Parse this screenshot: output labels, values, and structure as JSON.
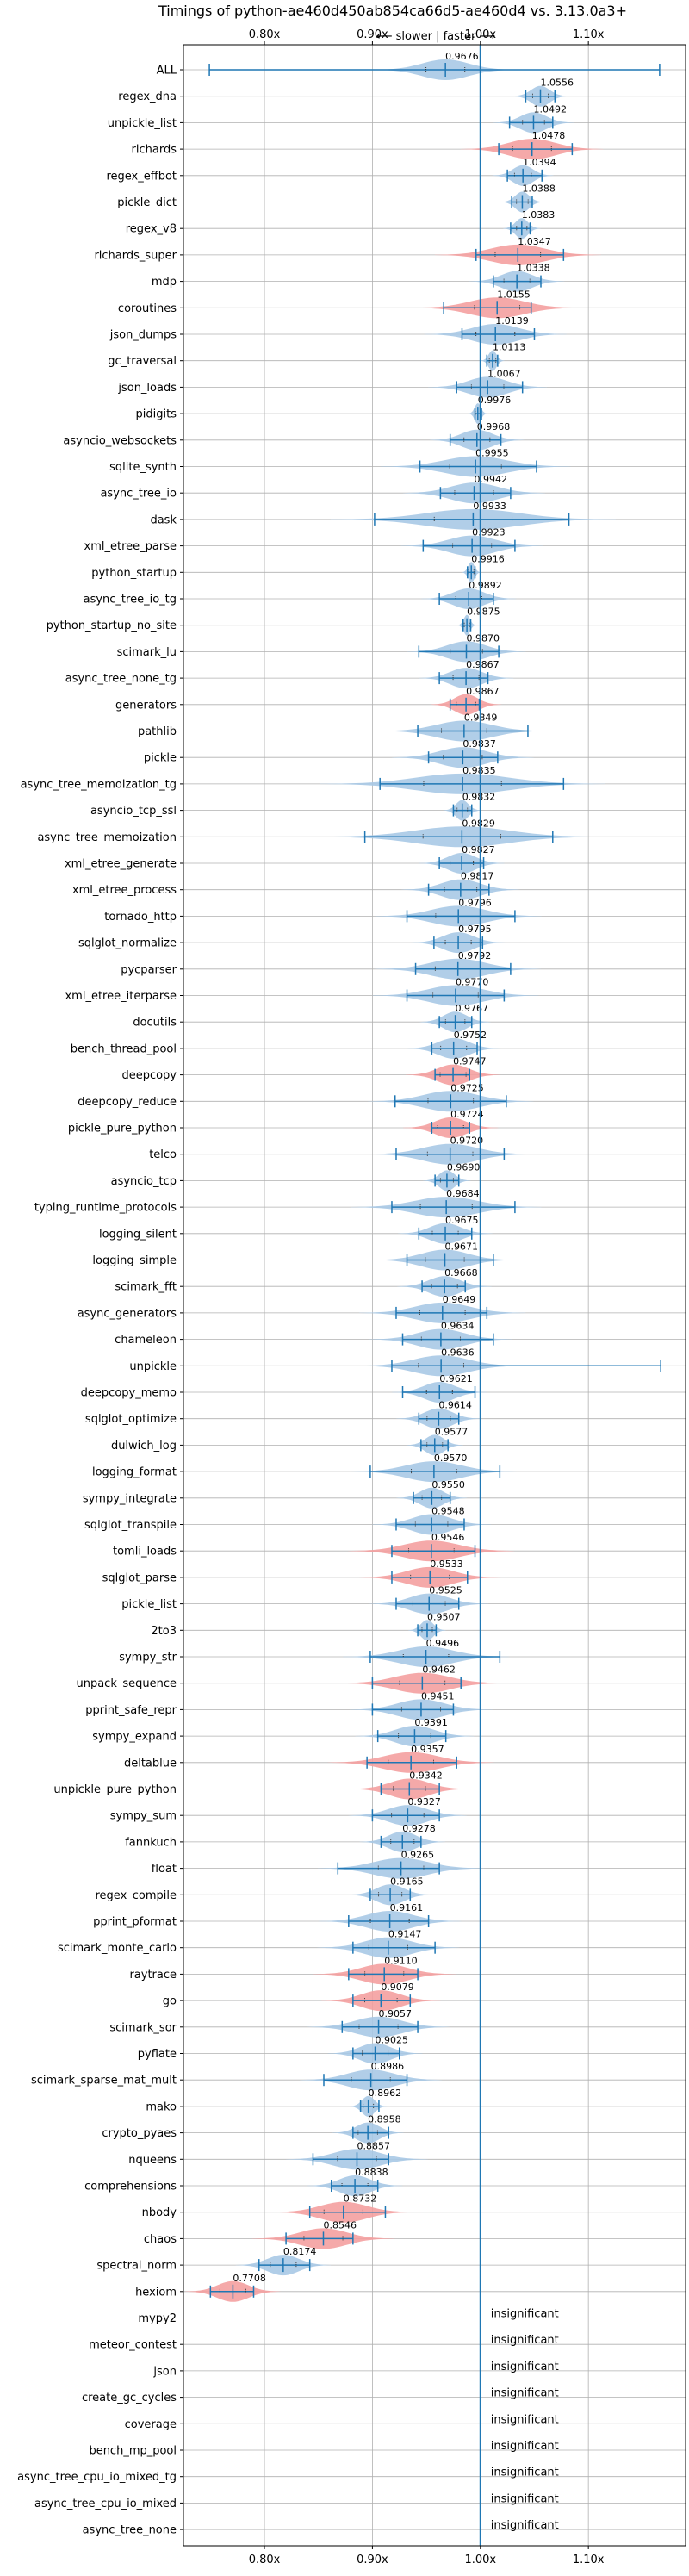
{
  "chart_data": {
    "type": "violin",
    "title": "Timings of python-ae460d450ab854ca66d5-ae460d4 vs. 3.13.0a3+",
    "direction_label": "⟵ slower | faster ⟶",
    "x_ticks": [
      "0.80x",
      "0.90x",
      "1.00x",
      "1.10x"
    ],
    "x_tick_values": [
      0.8,
      0.9,
      1.0,
      1.1
    ],
    "xlim": [
      0.725,
      1.19
    ],
    "reference_line": 1.0,
    "grid": true,
    "colors": {
      "faster": "#f4a0a0",
      "slower": "#a9c9e6",
      "neutral": "#a9c9e6",
      "whisker": "#1f77b4",
      "reference": "#1f77b4",
      "grid": "#b0b0b0"
    },
    "insignificant_label": "insignificant",
    "benchmarks": [
      {
        "name": "ALL",
        "value": 0.9676,
        "label": "0.9676",
        "min": 0.749,
        "max": 1.166,
        "spread": 0.03,
        "color": "neutral"
      },
      {
        "name": "regex_dna",
        "value": 1.0556,
        "label": "1.0556",
        "min": 1.042,
        "max": 1.069,
        "spread": 0.012,
        "color": "slower"
      },
      {
        "name": "unpickle_list",
        "value": 1.0492,
        "label": "1.0492",
        "min": 1.027,
        "max": 1.067,
        "spread": 0.017,
        "color": "slower"
      },
      {
        "name": "richards",
        "value": 1.0478,
        "label": "1.0478",
        "min": 1.017,
        "max": 1.085,
        "spread": 0.03,
        "color": "faster"
      },
      {
        "name": "regex_effbot",
        "value": 1.0394,
        "label": "1.0394",
        "min": 1.025,
        "max": 1.057,
        "spread": 0.013,
        "color": "slower"
      },
      {
        "name": "pickle_dict",
        "value": 1.0388,
        "label": "1.0388",
        "min": 1.029,
        "max": 1.048,
        "spread": 0.009,
        "color": "slower"
      },
      {
        "name": "regex_v8",
        "value": 1.0383,
        "label": "1.0383",
        "min": 1.028,
        "max": 1.046,
        "spread": 0.008,
        "color": "slower"
      },
      {
        "name": "richards_super",
        "value": 1.0347,
        "label": "1.0347",
        "min": 0.996,
        "max": 1.077,
        "spread": 0.035,
        "color": "faster"
      },
      {
        "name": "mdp",
        "value": 1.0338,
        "label": "1.0338",
        "min": 1.012,
        "max": 1.056,
        "spread": 0.02,
        "color": "slower"
      },
      {
        "name": "coroutines",
        "value": 1.0155,
        "label": "1.0155",
        "min": 0.966,
        "max": 1.047,
        "spread": 0.035,
        "color": "faster"
      },
      {
        "name": "json_dumps",
        "value": 1.0139,
        "label": "1.0139",
        "min": 0.983,
        "max": 1.05,
        "spread": 0.03,
        "color": "slower"
      },
      {
        "name": "gc_traversal",
        "value": 1.0113,
        "label": "1.0113",
        "min": 1.006,
        "max": 1.016,
        "spread": 0.005,
        "color": "slower"
      },
      {
        "name": "json_loads",
        "value": 1.0067,
        "label": "1.0067",
        "min": 0.978,
        "max": 1.039,
        "spread": 0.025,
        "color": "slower"
      },
      {
        "name": "pidigits",
        "value": 0.9976,
        "label": "0.9976",
        "min": 0.995,
        "max": 1.001,
        "spread": 0.004,
        "color": "slower"
      },
      {
        "name": "asyncio_websockets",
        "value": 0.9968,
        "label": "0.9968",
        "min": 0.972,
        "max": 1.019,
        "spread": 0.02,
        "color": "slower"
      },
      {
        "name": "sqlite_synth",
        "value": 0.9955,
        "label": "0.9955",
        "min": 0.944,
        "max": 1.052,
        "spread": 0.04,
        "color": "slower"
      },
      {
        "name": "async_tree_io",
        "value": 0.9942,
        "label": "0.9942",
        "min": 0.963,
        "max": 1.028,
        "spread": 0.03,
        "color": "slower"
      },
      {
        "name": "dask",
        "value": 0.9933,
        "label": "0.9933",
        "min": 0.902,
        "max": 1.082,
        "spread": 0.06,
        "color": "slower"
      },
      {
        "name": "xml_etree_parse",
        "value": 0.9923,
        "label": "0.9923",
        "min": 0.947,
        "max": 1.032,
        "spread": 0.03,
        "color": "slower"
      },
      {
        "name": "python_startup",
        "value": 0.9916,
        "label": "0.9916",
        "min": 0.988,
        "max": 0.995,
        "spread": 0.004,
        "color": "slower"
      },
      {
        "name": "async_tree_io_tg",
        "value": 0.9892,
        "label": "0.9892",
        "min": 0.962,
        "max": 1.012,
        "spread": 0.02,
        "color": "slower"
      },
      {
        "name": "python_startup_no_site",
        "value": 0.9875,
        "label": "0.9875",
        "min": 0.984,
        "max": 0.991,
        "spread": 0.004,
        "color": "slower"
      },
      {
        "name": "scimark_lu",
        "value": 0.987,
        "label": "0.9870",
        "min": 0.943,
        "max": 1.017,
        "spread": 0.025,
        "color": "slower"
      },
      {
        "name": "async_tree_none_tg",
        "value": 0.9867,
        "label": "0.9867",
        "min": 0.962,
        "max": 1.007,
        "spread": 0.02,
        "color": "slower"
      },
      {
        "name": "generators",
        "value": 0.9867,
        "label": "0.9867",
        "min": 0.972,
        "max": 0.999,
        "spread": 0.015,
        "color": "faster"
      },
      {
        "name": "pathlib",
        "value": 0.9849,
        "label": "0.9849",
        "min": 0.942,
        "max": 1.044,
        "spread": 0.035,
        "color": "slower"
      },
      {
        "name": "pickle",
        "value": 0.9837,
        "label": "0.9837",
        "min": 0.952,
        "max": 1.016,
        "spread": 0.03,
        "color": "slower"
      },
      {
        "name": "async_tree_memoization_tg",
        "value": 0.9835,
        "label": "0.9835",
        "min": 0.907,
        "max": 1.077,
        "spread": 0.06,
        "color": "slower"
      },
      {
        "name": "asyncio_tcp_ssl",
        "value": 0.9832,
        "label": "0.9832",
        "min": 0.975,
        "max": 0.992,
        "spread": 0.008,
        "color": "slower"
      },
      {
        "name": "async_tree_memoization",
        "value": 0.9829,
        "label": "0.9829",
        "min": 0.893,
        "max": 1.067,
        "spread": 0.06,
        "color": "slower"
      },
      {
        "name": "xml_etree_generate",
        "value": 0.9827,
        "label": "0.9827",
        "min": 0.962,
        "max": 1.003,
        "spread": 0.018,
        "color": "slower"
      },
      {
        "name": "xml_etree_process",
        "value": 0.9817,
        "label": "0.9817",
        "min": 0.952,
        "max": 1.008,
        "spread": 0.025,
        "color": "slower"
      },
      {
        "name": "tornado_http",
        "value": 0.9796,
        "label": "0.9796",
        "min": 0.932,
        "max": 1.032,
        "spread": 0.035,
        "color": "slower"
      },
      {
        "name": "sqlglot_normalize",
        "value": 0.9795,
        "label": "0.9795",
        "min": 0.957,
        "max": 1.002,
        "spread": 0.02,
        "color": "slower"
      },
      {
        "name": "pycparser",
        "value": 0.9792,
        "label": "0.9792",
        "min": 0.94,
        "max": 1.028,
        "spread": 0.035,
        "color": "slower"
      },
      {
        "name": "xml_etree_iterparse",
        "value": 0.977,
        "label": "0.9770",
        "min": 0.932,
        "max": 1.022,
        "spread": 0.035,
        "color": "slower"
      },
      {
        "name": "docutils",
        "value": 0.9767,
        "label": "0.9767",
        "min": 0.962,
        "max": 0.992,
        "spread": 0.015,
        "color": "slower"
      },
      {
        "name": "bench_thread_pool",
        "value": 0.9752,
        "label": "0.9752",
        "min": 0.955,
        "max": 0.997,
        "spread": 0.02,
        "color": "slower"
      },
      {
        "name": "deepcopy",
        "value": 0.9747,
        "label": "0.9747",
        "min": 0.958,
        "max": 0.99,
        "spread": 0.02,
        "color": "faster"
      },
      {
        "name": "deepcopy_reduce",
        "value": 0.9725,
        "label": "0.9725",
        "min": 0.921,
        "max": 1.024,
        "spread": 0.035,
        "color": "slower"
      },
      {
        "name": "pickle_pure_python",
        "value": 0.9724,
        "label": "0.9724",
        "min": 0.955,
        "max": 0.99,
        "spread": 0.02,
        "color": "faster"
      },
      {
        "name": "telco",
        "value": 0.972,
        "label": "0.9720",
        "min": 0.922,
        "max": 1.022,
        "spread": 0.035,
        "color": "slower"
      },
      {
        "name": "asyncio_tcp",
        "value": 0.969,
        "label": "0.9690",
        "min": 0.958,
        "max": 0.98,
        "spread": 0.01,
        "color": "slower"
      },
      {
        "name": "typing_runtime_protocols",
        "value": 0.9684,
        "label": "0.9684",
        "min": 0.918,
        "max": 1.032,
        "spread": 0.04,
        "color": "slower"
      },
      {
        "name": "logging_silent",
        "value": 0.9675,
        "label": "0.9675",
        "min": 0.943,
        "max": 0.992,
        "spread": 0.02,
        "color": "slower"
      },
      {
        "name": "logging_simple",
        "value": 0.9671,
        "label": "0.9671",
        "min": 0.932,
        "max": 1.012,
        "spread": 0.03,
        "color": "slower"
      },
      {
        "name": "scimark_fft",
        "value": 0.9668,
        "label": "0.9668",
        "min": 0.946,
        "max": 0.986,
        "spread": 0.02,
        "color": "slower"
      },
      {
        "name": "async_generators",
        "value": 0.9649,
        "label": "0.9649",
        "min": 0.922,
        "max": 1.006,
        "spread": 0.035,
        "color": "slower"
      },
      {
        "name": "chameleon",
        "value": 0.9634,
        "label": "0.9634",
        "min": 0.928,
        "max": 1.012,
        "spread": 0.03,
        "color": "slower"
      },
      {
        "name": "unpickle",
        "value": 0.9636,
        "label": "0.9636",
        "min": 0.918,
        "max": 1.167,
        "spread": 0.035,
        "color": "slower"
      },
      {
        "name": "deepcopy_memo",
        "value": 0.9621,
        "label": "0.9621",
        "min": 0.928,
        "max": 0.995,
        "spread": 0.02,
        "color": "slower"
      },
      {
        "name": "sqlglot_optimize",
        "value": 0.9614,
        "label": "0.9614",
        "min": 0.943,
        "max": 0.98,
        "spread": 0.018,
        "color": "slower"
      },
      {
        "name": "dulwich_log",
        "value": 0.9577,
        "label": "0.9577",
        "min": 0.945,
        "max": 0.97,
        "spread": 0.012,
        "color": "slower"
      },
      {
        "name": "logging_format",
        "value": 0.957,
        "label": "0.9570",
        "min": 0.898,
        "max": 1.018,
        "spread": 0.035,
        "color": "slower"
      },
      {
        "name": "sympy_integrate",
        "value": 0.955,
        "label": "0.9550",
        "min": 0.938,
        "max": 0.972,
        "spread": 0.015,
        "color": "slower"
      },
      {
        "name": "sqlglot_transpile",
        "value": 0.9548,
        "label": "0.9548",
        "min": 0.922,
        "max": 0.985,
        "spread": 0.025,
        "color": "slower"
      },
      {
        "name": "tomli_loads",
        "value": 0.9546,
        "label": "0.9546",
        "min": 0.918,
        "max": 0.995,
        "spread": 0.035,
        "color": "faster"
      },
      {
        "name": "sqlglot_parse",
        "value": 0.9533,
        "label": "0.9533",
        "min": 0.918,
        "max": 0.988,
        "spread": 0.03,
        "color": "faster"
      },
      {
        "name": "pickle_list",
        "value": 0.9525,
        "label": "0.9525",
        "min": 0.922,
        "max": 0.98,
        "spread": 0.025,
        "color": "slower"
      },
      {
        "name": "2to3",
        "value": 0.9507,
        "label": "0.9507",
        "min": 0.942,
        "max": 0.959,
        "spread": 0.008,
        "color": "slower"
      },
      {
        "name": "sympy_str",
        "value": 0.9496,
        "label": "0.9496",
        "min": 0.898,
        "max": 1.018,
        "spread": 0.035,
        "color": "slower"
      },
      {
        "name": "unpack_sequence",
        "value": 0.9462,
        "label": "0.9462",
        "min": 0.9,
        "max": 0.982,
        "spread": 0.035,
        "color": "faster"
      },
      {
        "name": "pprint_safe_repr",
        "value": 0.9451,
        "label": "0.9451",
        "min": 0.9,
        "max": 0.975,
        "spread": 0.03,
        "color": "slower"
      },
      {
        "name": "sympy_expand",
        "value": 0.9391,
        "label": "0.9391",
        "min": 0.905,
        "max": 0.968,
        "spread": 0.025,
        "color": "slower"
      },
      {
        "name": "deltablue",
        "value": 0.9357,
        "label": "0.9357",
        "min": 0.895,
        "max": 0.978,
        "spread": 0.035,
        "color": "faster"
      },
      {
        "name": "unpickle_pure_python",
        "value": 0.9342,
        "label": "0.9342",
        "min": 0.908,
        "max": 0.962,
        "spread": 0.025,
        "color": "faster"
      },
      {
        "name": "sympy_sum",
        "value": 0.9327,
        "label": "0.9327",
        "min": 0.9,
        "max": 0.962,
        "spread": 0.025,
        "color": "slower"
      },
      {
        "name": "fannkuch",
        "value": 0.9278,
        "label": "0.9278",
        "min": 0.908,
        "max": 0.945,
        "spread": 0.018,
        "color": "slower"
      },
      {
        "name": "float",
        "value": 0.9265,
        "label": "0.9265",
        "min": 0.868,
        "max": 0.962,
        "spread": 0.035,
        "color": "slower"
      },
      {
        "name": "regex_compile",
        "value": 0.9165,
        "label": "0.9165",
        "min": 0.898,
        "max": 0.935,
        "spread": 0.018,
        "color": "slower"
      },
      {
        "name": "pprint_pformat",
        "value": 0.9161,
        "label": "0.9161",
        "min": 0.878,
        "max": 0.952,
        "spread": 0.03,
        "color": "slower"
      },
      {
        "name": "scimark_monte_carlo",
        "value": 0.9147,
        "label": "0.9147",
        "min": 0.882,
        "max": 0.958,
        "spread": 0.03,
        "color": "slower"
      },
      {
        "name": "raytrace",
        "value": 0.911,
        "label": "0.9110",
        "min": 0.878,
        "max": 0.942,
        "spread": 0.03,
        "color": "faster"
      },
      {
        "name": "go",
        "value": 0.9079,
        "label": "0.9079",
        "min": 0.882,
        "max": 0.935,
        "spread": 0.025,
        "color": "faster"
      },
      {
        "name": "scimark_sor",
        "value": 0.9057,
        "label": "0.9057",
        "min": 0.872,
        "max": 0.942,
        "spread": 0.03,
        "color": "slower"
      },
      {
        "name": "pyflate",
        "value": 0.9025,
        "label": "0.9025",
        "min": 0.882,
        "max": 0.925,
        "spread": 0.02,
        "color": "slower"
      },
      {
        "name": "scimark_sparse_mat_mult",
        "value": 0.8986,
        "label": "0.8986",
        "min": 0.855,
        "max": 0.932,
        "spread": 0.03,
        "color": "slower"
      },
      {
        "name": "mako",
        "value": 0.8962,
        "label": "0.8962",
        "min": 0.889,
        "max": 0.906,
        "spread": 0.008,
        "color": "slower"
      },
      {
        "name": "crypto_pyaes",
        "value": 0.8958,
        "label": "0.8958",
        "min": 0.882,
        "max": 0.915,
        "spread": 0.015,
        "color": "slower"
      },
      {
        "name": "nqueens",
        "value": 0.8857,
        "label": "0.8857",
        "min": 0.845,
        "max": 0.915,
        "spread": 0.03,
        "color": "slower"
      },
      {
        "name": "comprehensions",
        "value": 0.8838,
        "label": "0.8838",
        "min": 0.862,
        "max": 0.905,
        "spread": 0.02,
        "color": "slower"
      },
      {
        "name": "nbody",
        "value": 0.8732,
        "label": "0.8732",
        "min": 0.842,
        "max": 0.912,
        "spread": 0.03,
        "color": "faster"
      },
      {
        "name": "chaos",
        "value": 0.8546,
        "label": "0.8546",
        "min": 0.82,
        "max": 0.882,
        "spread": 0.03,
        "color": "faster"
      },
      {
        "name": "spectral_norm",
        "value": 0.8174,
        "label": "0.8174",
        "min": 0.795,
        "max": 0.842,
        "spread": 0.02,
        "color": "slower"
      },
      {
        "name": "hexiom",
        "value": 0.7708,
        "label": "0.7708",
        "min": 0.75,
        "max": 0.79,
        "spread": 0.02,
        "color": "faster"
      },
      {
        "name": "mypy2",
        "insignificant": true
      },
      {
        "name": "meteor_contest",
        "insignificant": true
      },
      {
        "name": "json",
        "insignificant": true
      },
      {
        "name": "create_gc_cycles",
        "insignificant": true
      },
      {
        "name": "coverage",
        "insignificant": true
      },
      {
        "name": "bench_mp_pool",
        "insignificant": true
      },
      {
        "name": "async_tree_cpu_io_mixed_tg",
        "insignificant": true
      },
      {
        "name": "async_tree_cpu_io_mixed",
        "insignificant": true
      },
      {
        "name": "async_tree_none",
        "insignificant": true
      }
    ]
  }
}
